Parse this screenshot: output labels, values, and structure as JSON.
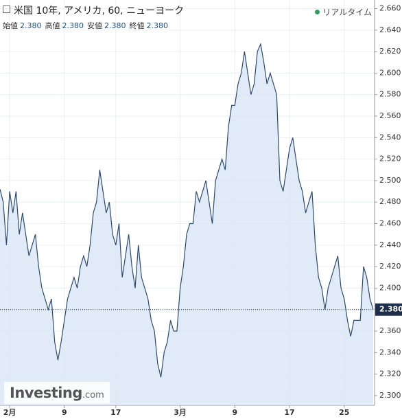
{
  "header": {
    "title": "米国 10年, アメリカ, 60, ニューヨーク",
    "status": "リアルタイム"
  },
  "ohlc": [
    {
      "label": "始値",
      "value": "2.380"
    },
    {
      "label": "高値",
      "value": "2.380"
    },
    {
      "label": "安値",
      "value": "2.380"
    },
    {
      "label": "終値",
      "value": "2.380"
    }
  ],
  "watermark": {
    "name": "Investing",
    "domain": ".com"
  },
  "chart_data": {
    "type": "area",
    "color": "#2b4a6f",
    "fill": "#dce8f6",
    "grid": true,
    "values": [
      2.492,
      2.48,
      2.44,
      2.49,
      2.47,
      2.49,
      2.45,
      2.47,
      2.45,
      2.43,
      2.44,
      2.45,
      2.42,
      2.4,
      2.39,
      2.38,
      2.39,
      2.35,
      2.333,
      2.35,
      2.37,
      2.39,
      2.4,
      2.41,
      2.4,
      2.42,
      2.43,
      2.42,
      2.44,
      2.47,
      2.48,
      2.51,
      2.49,
      2.47,
      2.48,
      2.45,
      2.44,
      2.46,
      2.41,
      2.43,
      2.45,
      2.42,
      2.4,
      2.44,
      2.41,
      2.4,
      2.39,
      2.37,
      2.36,
      2.33,
      2.317,
      2.34,
      2.35,
      2.37,
      2.36,
      2.36,
      2.4,
      2.42,
      2.45,
      2.46,
      2.46,
      2.49,
      2.48,
      2.49,
      2.5,
      2.48,
      2.46,
      2.5,
      2.51,
      2.52,
      2.51,
      2.55,
      2.57,
      2.57,
      2.59,
      2.6,
      2.62,
      2.6,
      2.58,
      2.59,
      2.62,
      2.627,
      2.61,
      2.59,
      2.6,
      2.59,
      2.58,
      2.5,
      2.49,
      2.51,
      2.53,
      2.54,
      2.52,
      2.5,
      2.49,
      2.47,
      2.48,
      2.49,
      2.44,
      2.41,
      2.4,
      2.38,
      2.4,
      2.41,
      2.42,
      2.43,
      2.4,
      2.39,
      2.37,
      2.355,
      2.37,
      2.37,
      2.37,
      2.42,
      2.41,
      2.39,
      2.38
    ],
    "xlim": [
      0,
      116
    ],
    "xticks": [
      {
        "value": 3,
        "label": "2月"
      },
      {
        "value": 20,
        "label": "9"
      },
      {
        "value": 36,
        "label": "17"
      },
      {
        "value": 56,
        "label": "3月"
      },
      {
        "value": 73,
        "label": "9"
      },
      {
        "value": 90,
        "label": "17"
      },
      {
        "value": 107,
        "label": "25"
      }
    ],
    "ylim": [
      2.291,
      2.668
    ],
    "yticks": [
      {
        "value": 2.3,
        "label": "2.300"
      },
      {
        "value": 2.32,
        "label": "2.320"
      },
      {
        "value": 2.34,
        "label": "2.340"
      },
      {
        "value": 2.36,
        "label": "2.360"
      },
      {
        "value": 2.38,
        "label": "2.380"
      },
      {
        "value": 2.4,
        "label": "2.400"
      },
      {
        "value": 2.42,
        "label": "2.420"
      },
      {
        "value": 2.44,
        "label": "2.440"
      },
      {
        "value": 2.46,
        "label": "2.460"
      },
      {
        "value": 2.48,
        "label": "2.480"
      },
      {
        "value": 2.5,
        "label": "2.500"
      },
      {
        "value": 2.52,
        "label": "2.520"
      },
      {
        "value": 2.54,
        "label": "2.540"
      },
      {
        "value": 2.56,
        "label": "2.560"
      },
      {
        "value": 2.58,
        "label": "2.580"
      },
      {
        "value": 2.6,
        "label": "2.600"
      },
      {
        "value": 2.62,
        "label": "2.620"
      },
      {
        "value": 2.64,
        "label": "2.640"
      },
      {
        "value": 2.66,
        "label": "2.660"
      }
    ],
    "last_price": {
      "value": 2.38,
      "label": "2.380"
    }
  }
}
